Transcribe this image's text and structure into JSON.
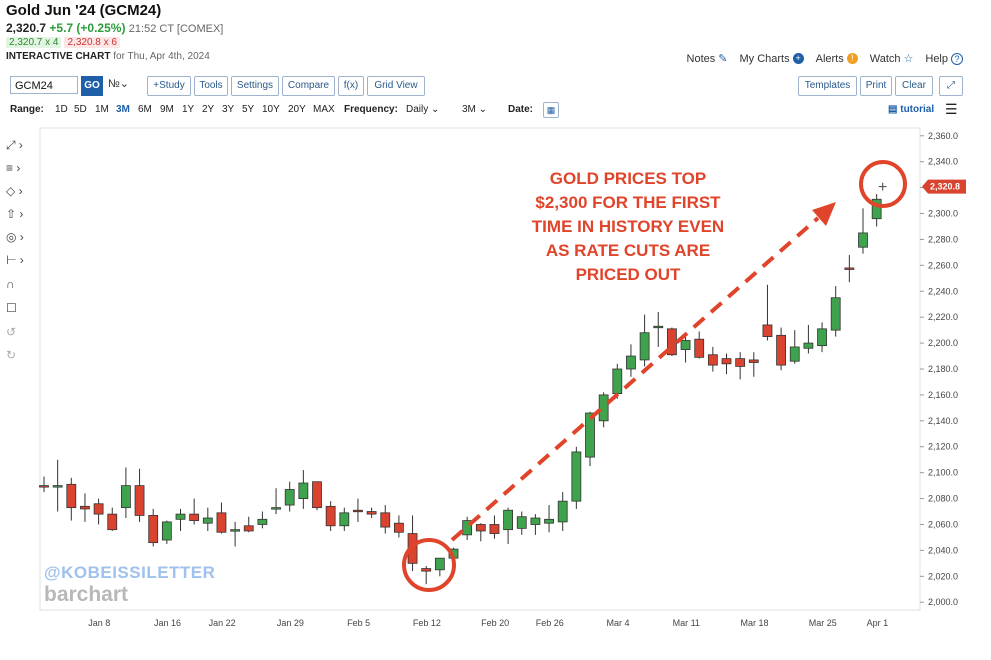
{
  "header": {
    "title": "Gold Jun '24 (GCM24)",
    "last": "2,320.7",
    "change": "+5.7 (+0.25%)",
    "time": "21:52 CT [COMEX]",
    "bid": "2,320.7 x 4",
    "ask": "2,320.8 x 6",
    "ic_label": "INTERACTIVE CHART",
    "ic_date": "for Thu, Apr 4th, 2024"
  },
  "toplinks": [
    {
      "label": "Notes",
      "icon": "pencil-icon"
    },
    {
      "label": "My Charts",
      "icon": "plus-circle-icon"
    },
    {
      "label": "Alerts",
      "icon": "alert-icon"
    },
    {
      "label": "Watch",
      "icon": "star-icon"
    },
    {
      "label": "Help",
      "icon": "help-icon"
    }
  ],
  "toolbar": {
    "symbol": "GCM24",
    "go": "GO",
    "study": "+Study",
    "tools": "Tools",
    "settings": "Settings",
    "compare": "Compare",
    "fx": "f(x)",
    "grid_view": "Grid View",
    "templates": "Templates",
    "print": "Print",
    "clear": "Clear"
  },
  "rangebar": {
    "range_label": "Range:",
    "ranges": [
      "1D",
      "5D",
      "1M",
      "3M",
      "6M",
      "9M",
      "1Y",
      "2Y",
      "3Y",
      "5Y",
      "10Y",
      "20Y",
      "MAX"
    ],
    "active_range": "3M",
    "freq_label": "Frequency:",
    "freq_value": "Daily",
    "period_value": "3M",
    "date_label": "Date:",
    "tutorial": "tutorial"
  },
  "watermark": {
    "kobeissi": "@KOBEISSILETTER",
    "barchart": "barchart"
  },
  "annotation": [
    "GOLD PRICES TOP",
    "$2,300 FOR THE FIRST",
    "TIME IN HISTORY EVEN",
    "AS RATE CUTS ARE",
    "PRICED OUT"
  ],
  "colors": {
    "up": "#3fa34d",
    "down": "#d9432f",
    "accent": "#1e5fa8",
    "annotation": "#e0442a"
  },
  "chart_data": {
    "type": "candlestick",
    "title": "",
    "ylim": [
      1994,
      2366
    ],
    "yticks": [
      2000,
      2020,
      2040,
      2060,
      2080,
      2100,
      2120,
      2140,
      2160,
      2180,
      2200,
      2220,
      2240,
      2260,
      2280,
      2300,
      2320,
      2340,
      2360
    ],
    "xticks": [
      {
        "label": "Jan 8",
        "index": 2
      },
      {
        "label": "Jan 16",
        "index": 7
      },
      {
        "label": "Jan 22",
        "index": 11
      },
      {
        "label": "Jan 29",
        "index": 16
      },
      {
        "label": "Feb 5",
        "index": 21
      },
      {
        "label": "Feb 12",
        "index": 26
      },
      {
        "label": "Feb 20",
        "index": 31
      },
      {
        "label": "Feb 26",
        "index": 35
      },
      {
        "label": "Mar 4",
        "index": 40
      },
      {
        "label": "Mar 11",
        "index": 45
      },
      {
        "label": "Mar 18",
        "index": 50
      },
      {
        "label": "Mar 25",
        "index": 55
      },
      {
        "label": "Apr 1",
        "index": 59
      }
    ],
    "last_label": "2,320.8",
    "last_value": 2320.8,
    "candles": [
      {
        "o": 2090,
        "h": 2097,
        "l": 2085,
        "c": 2089
      },
      {
        "o": 2089,
        "h": 2110,
        "l": 2070,
        "c": 2090
      },
      {
        "o": 2091,
        "h": 2096,
        "l": 2063,
        "c": 2073
      },
      {
        "o": 2074,
        "h": 2084,
        "l": 2062,
        "c": 2072
      },
      {
        "o": 2076,
        "h": 2080,
        "l": 2060,
        "c": 2068
      },
      {
        "o": 2068,
        "h": 2073,
        "l": 2055,
        "c": 2056
      },
      {
        "o": 2073,
        "h": 2104,
        "l": 2065,
        "c": 2090
      },
      {
        "o": 2090,
        "h": 2103,
        "l": 2062,
        "c": 2067
      },
      {
        "o": 2067,
        "h": 2072,
        "l": 2043,
        "c": 2046
      },
      {
        "o": 2048,
        "h": 2063,
        "l": 2045,
        "c": 2062
      },
      {
        "o": 2064,
        "h": 2072,
        "l": 2055,
        "c": 2068
      },
      {
        "o": 2068,
        "h": 2080,
        "l": 2060,
        "c": 2063
      },
      {
        "o": 2061,
        "h": 2073,
        "l": 2055,
        "c": 2065
      },
      {
        "o": 2069,
        "h": 2077,
        "l": 2053,
        "c": 2054
      },
      {
        "o": 2056,
        "h": 2062,
        "l": 2043,
        "c": 2056
      },
      {
        "o": 2059,
        "h": 2066,
        "l": 2054,
        "c": 2055
      },
      {
        "o": 2060,
        "h": 2070,
        "l": 2057,
        "c": 2064
      },
      {
        "o": 2073,
        "h": 2088,
        "l": 2068,
        "c": 2073
      },
      {
        "o": 2075,
        "h": 2093,
        "l": 2070,
        "c": 2087
      },
      {
        "o": 2080,
        "h": 2102,
        "l": 2072,
        "c": 2092
      },
      {
        "o": 2093,
        "h": 2093,
        "l": 2071,
        "c": 2073
      },
      {
        "o": 2074,
        "h": 2078,
        "l": 2055,
        "c": 2059
      },
      {
        "o": 2059,
        "h": 2073,
        "l": 2055,
        "c": 2069
      },
      {
        "o": 2071,
        "h": 2080,
        "l": 2062,
        "c": 2070
      },
      {
        "o": 2070,
        "h": 2073,
        "l": 2065,
        "c": 2068
      },
      {
        "o": 2069,
        "h": 2075,
        "l": 2053,
        "c": 2058
      },
      {
        "o": 2061,
        "h": 2067,
        "l": 2050,
        "c": 2054
      },
      {
        "o": 2053,
        "h": 2067,
        "l": 2024,
        "c": 2030
      },
      {
        "o": 2026,
        "h": 2028,
        "l": 2014,
        "c": 2024
      },
      {
        "o": 2025,
        "h": 2031,
        "l": 2020,
        "c": 2034
      },
      {
        "o": 2034,
        "h": 2042,
        "l": 2030,
        "c": 2041
      },
      {
        "o": 2052,
        "h": 2066,
        "l": 2048,
        "c": 2063
      },
      {
        "o": 2060,
        "h": 2061,
        "l": 2047,
        "c": 2055
      },
      {
        "o": 2060,
        "h": 2067,
        "l": 2049,
        "c": 2053
      },
      {
        "o": 2056,
        "h": 2073,
        "l": 2045,
        "c": 2071
      },
      {
        "o": 2057,
        "h": 2070,
        "l": 2052,
        "c": 2066
      },
      {
        "o": 2060,
        "h": 2068,
        "l": 2052,
        "c": 2065
      },
      {
        "o": 2061,
        "h": 2075,
        "l": 2054,
        "c": 2064
      },
      {
        "o": 2062,
        "h": 2085,
        "l": 2055,
        "c": 2078
      },
      {
        "o": 2078,
        "h": 2120,
        "l": 2072,
        "c": 2116
      },
      {
        "o": 2112,
        "h": 2147,
        "l": 2105,
        "c": 2146
      },
      {
        "o": 2140,
        "h": 2162,
        "l": 2135,
        "c": 2160
      },
      {
        "o": 2161,
        "h": 2184,
        "l": 2157,
        "c": 2180
      },
      {
        "o": 2180,
        "h": 2199,
        "l": 2174,
        "c": 2190
      },
      {
        "o": 2187,
        "h": 2222,
        "l": 2182,
        "c": 2208
      },
      {
        "o": 2212,
        "h": 2224,
        "l": 2197,
        "c": 2213
      },
      {
        "o": 2211,
        "h": 2212,
        "l": 2190,
        "c": 2191
      },
      {
        "o": 2195,
        "h": 2208,
        "l": 2185,
        "c": 2202
      },
      {
        "o": 2203,
        "h": 2209,
        "l": 2188,
        "c": 2189
      },
      {
        "o": 2191,
        "h": 2197,
        "l": 2178,
        "c": 2183
      },
      {
        "o": 2188,
        "h": 2192,
        "l": 2176,
        "c": 2184
      },
      {
        "o": 2188,
        "h": 2193,
        "l": 2172,
        "c": 2182
      },
      {
        "o": 2187,
        "h": 2193,
        "l": 2174,
        "c": 2185
      },
      {
        "o": 2214,
        "h": 2245,
        "l": 2202,
        "c": 2205
      },
      {
        "o": 2206,
        "h": 2212,
        "l": 2179,
        "c": 2183
      },
      {
        "o": 2186,
        "h": 2210,
        "l": 2184,
        "c": 2197
      },
      {
        "o": 2196,
        "h": 2214,
        "l": 2192,
        "c": 2200
      },
      {
        "o": 2198,
        "h": 2216,
        "l": 2193,
        "c": 2211
      },
      {
        "o": 2210,
        "h": 2244,
        "l": 2205,
        "c": 2235
      },
      {
        "o": 2258,
        "h": 2268,
        "l": 2247,
        "c": 2257
      },
      {
        "o": 2274,
        "h": 2304,
        "l": 2269,
        "c": 2285
      },
      {
        "o": 2296,
        "h": 2315,
        "l": 2290,
        "c": 2311
      }
    ]
  }
}
